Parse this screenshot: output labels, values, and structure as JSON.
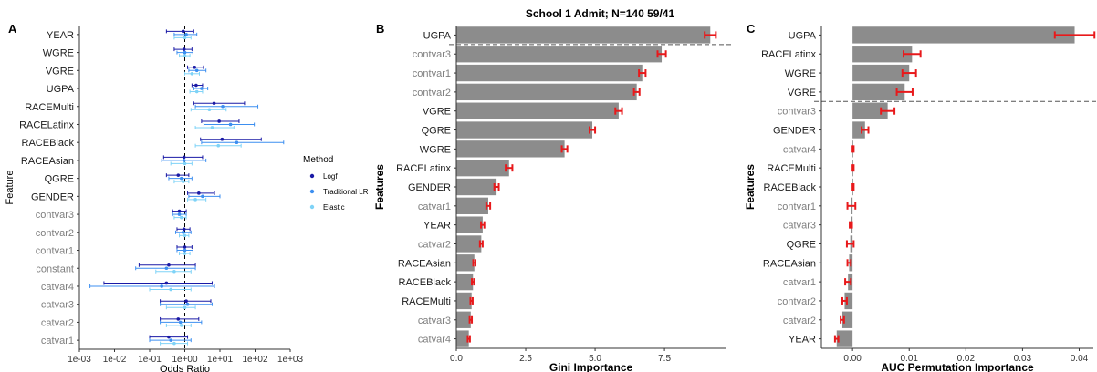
{
  "chart_data": [
    {
      "panel": "A",
      "type": "scatter",
      "xlabel": "Odds Ratio",
      "ylabel": "Feature",
      "x_scale": "log10",
      "xlim": [
        0.001,
        1000
      ],
      "x_ticks": [
        "1e-03",
        "1e-02",
        "1e-01",
        "1e+00",
        "1e+01",
        "1e+02",
        "1e+03"
      ],
      "reference_line": 1,
      "legend": {
        "title": "Method",
        "position": "right",
        "entries": [
          {
            "name": "Logf",
            "color": "#1a1aa6"
          },
          {
            "name": "Traditional LR",
            "color": "#3d8ff0"
          },
          {
            "name": "Elastic",
            "color": "#7fd3f7"
          }
        ]
      },
      "categories": [
        "YEAR",
        "WGRE",
        "VGRE",
        "UGPA",
        "RACEMulti",
        "RACELatinx",
        "RACEBlack",
        "RACEAsian",
        "QGRE",
        "GENDER",
        "contvar3",
        "contvar2",
        "contvar1",
        "constant",
        "catvar4",
        "catvar3",
        "catvar2",
        "catvar1"
      ],
      "grey_labels": [
        "contvar3",
        "contvar2",
        "contvar1",
        "constant",
        "catvar4",
        "catvar3",
        "catvar2",
        "catvar1"
      ],
      "series": [
        {
          "name": "Logf",
          "estimate": [
            0.9,
            0.95,
            1.9,
            2.1,
            6.8,
            9.5,
            11.5,
            0.95,
            0.65,
            2.5,
            0.7,
            0.95,
            1.0,
            0.35,
            0.3,
            1.1,
            0.65,
            0.35
          ],
          "lower": [
            0.3,
            0.5,
            1.2,
            1.6,
            1.8,
            3.0,
            2.8,
            0.25,
            0.3,
            1.2,
            0.45,
            0.6,
            0.6,
            0.05,
            0.005,
            0.2,
            0.2,
            0.1
          ],
          "upper": [
            1.8,
            1.6,
            3.4,
            3.2,
            50,
            35,
            150,
            3.2,
            1.3,
            7,
            1.1,
            1.4,
            1.6,
            2.0,
            6,
            5.5,
            2.5,
            1.2
          ]
        },
        {
          "name": "Traditional LR",
          "estimate": [
            1.1,
            1.0,
            2.2,
            3.0,
            12,
            20,
            30,
            0.95,
            0.8,
            3.2,
            0.7,
            0.9,
            1.0,
            0.3,
            0.22,
            1.2,
            0.75,
            0.4
          ],
          "lower": [
            0.5,
            0.6,
            1.3,
            1.8,
            2.0,
            3.5,
            3.0,
            0.22,
            0.35,
            1.3,
            0.45,
            0.55,
            0.6,
            0.04,
            0.002,
            0.2,
            0.2,
            0.1
          ],
          "upper": [
            2.2,
            1.7,
            4.0,
            4.5,
            120,
            95,
            650,
            4.0,
            1.6,
            10,
            1.1,
            1.5,
            1.7,
            2.0,
            7,
            6,
            3.0,
            1.5
          ]
        },
        {
          "name": "Elastic",
          "estimate": [
            1.0,
            1.0,
            1.6,
            2.2,
            5.0,
            6.0,
            9.0,
            1.0,
            0.9,
            2.0,
            0.8,
            1.0,
            1.0,
            0.5,
            0.4,
            1.0,
            0.8,
            0.5
          ],
          "lower": [
            0.5,
            0.7,
            1.0,
            1.4,
            1.5,
            2.0,
            2.0,
            0.4,
            0.5,
            1.2,
            0.5,
            0.7,
            0.7,
            0.15,
            0.1,
            0.3,
            0.3,
            0.2
          ],
          "upper": [
            1.5,
            1.4,
            2.6,
            3.2,
            15,
            25,
            40,
            1.6,
            1.3,
            4.0,
            1.1,
            1.3,
            1.4,
            1.5,
            1.5,
            2.0,
            1.5,
            1.2
          ]
        }
      ]
    },
    {
      "panel": "B",
      "type": "bar",
      "orientation": "horizontal",
      "title": "School 1 Admit; N=140 59/41",
      "xlabel": "Gini Importance",
      "ylabel": "Features",
      "xlim": [
        0,
        9.7
      ],
      "x_ticks": [
        "0.0",
        "2.5",
        "5.0",
        "7.5"
      ],
      "categories": [
        "UGPA",
        "contvar3",
        "contvar1",
        "contvar2",
        "VGRE",
        "QGRE",
        "WGRE",
        "RACELatinx",
        "GENDER",
        "catvar1",
        "YEAR",
        "catvar2",
        "RACEAsian",
        "RACEBlack",
        "RACEMulti",
        "catvar3",
        "catvar4"
      ],
      "grey_labels": [
        "contvar3",
        "contvar1",
        "contvar2",
        "catvar1",
        "catvar2",
        "catvar3",
        "catvar4"
      ],
      "values": [
        9.15,
        7.4,
        6.7,
        6.5,
        5.85,
        4.9,
        3.9,
        1.9,
        1.45,
        1.15,
        0.95,
        0.9,
        0.65,
        0.6,
        0.55,
        0.52,
        0.45
      ],
      "error": [
        0.2,
        0.15,
        0.12,
        0.1,
        0.12,
        0.1,
        0.1,
        0.12,
        0.08,
        0.07,
        0.06,
        0.05,
        0.04,
        0.04,
        0.04,
        0.04,
        0.04
      ],
      "threshold_after": 1
    },
    {
      "panel": "C",
      "type": "bar",
      "orientation": "horizontal",
      "xlabel": "AUC Permutation Importance",
      "ylabel": "Features",
      "xlim": [
        -0.0055,
        0.0425
      ],
      "x_ticks": [
        "0.00",
        "0.01",
        "0.02",
        "0.03",
        "0.04"
      ],
      "x_tick_values": [
        0,
        0.01,
        0.02,
        0.03,
        0.04
      ],
      "categories": [
        "UGPA",
        "RACELatinx",
        "WGRE",
        "VGRE",
        "contvar3",
        "GENDER",
        "catvar4",
        "RACEMulti",
        "RACEBlack",
        "contvar1",
        "catvar3",
        "QGRE",
        "RACEAsian",
        "catvar1",
        "contvar2",
        "catvar2",
        "YEAR"
      ],
      "grey_labels": [
        "contvar3",
        "catvar4",
        "contvar1",
        "catvar3",
        "catvar1",
        "contvar2",
        "catvar2"
      ],
      "values": [
        0.0392,
        0.0105,
        0.01,
        0.0092,
        0.0062,
        0.0022,
        0.0001,
        0.0001,
        0.0001,
        -0.0002,
        -0.0003,
        -0.0004,
        -0.0006,
        -0.0008,
        -0.0014,
        -0.0018,
        -0.0028
      ],
      "error": [
        0.0035,
        0.0015,
        0.0012,
        0.0014,
        0.0012,
        0.0006,
        0.0001,
        0.0001,
        0.0001,
        0.0007,
        0.0002,
        0.0006,
        0.0003,
        0.0005,
        0.0004,
        0.0003,
        0.0003
      ],
      "threshold_after": 4
    }
  ],
  "panels": {
    "A": "A",
    "B": "B",
    "C": "C"
  },
  "colors": {
    "bar": "#8c8c8c",
    "error": "#e8191b",
    "axis": "#333333",
    "grey_label": "#7f7f7f"
  }
}
